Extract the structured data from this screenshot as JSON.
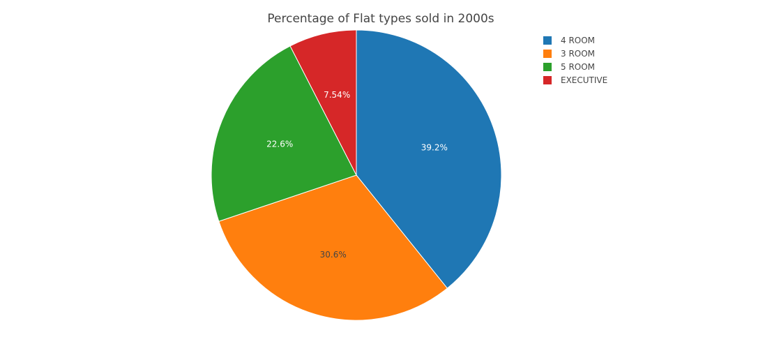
{
  "chart_data": {
    "type": "pie",
    "title": "Percentage of Flat types sold in 2000s",
    "categories": [
      "4 ROOM",
      "3 ROOM",
      "5 ROOM",
      "EXECUTIVE"
    ],
    "values": [
      39.2,
      30.6,
      22.6,
      7.54
    ],
    "labels": [
      "39.2%",
      "30.6%",
      "22.6%",
      "7.54%"
    ],
    "colors": [
      "#1f77b4",
      "#ff7f0e",
      "#2ca02c",
      "#d62728"
    ],
    "label_colors": [
      "#ffffff",
      "#444444",
      "#ffffff",
      "#ffffff"
    ],
    "direction": "clockwise",
    "start": "top",
    "legend_placement": "top-right"
  }
}
